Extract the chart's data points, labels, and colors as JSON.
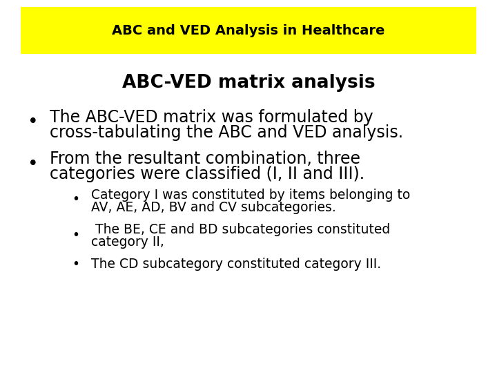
{
  "title_banner_text": "ABC and VED Analysis in Healthcare",
  "title_banner_bg": "#ffff00",
  "title_banner_text_color": "#000000",
  "subtitle": "ABC-VED matrix analysis",
  "bg_color": "#ffffff",
  "bullet1_line1": "The ABC-VED matrix was formulated by",
  "bullet1_line2": "cross-tabulating the ABC and VED analysis.",
  "bullet2_line1": "From the resultant combination, three",
  "bullet2_line2": "categories were classified (I, II and III).",
  "sub_bullet1_line1": "Category I was constituted by items belonging to",
  "sub_bullet1_line2": "AV, AE, AD, BV and CV subcategories.",
  "sub_bullet2_line1": " The BE, CE and BD subcategories constituted",
  "sub_bullet2_line2": "category II,",
  "sub_bullet3": "The CD subcategory constituted category III.",
  "main_font_size": 17,
  "sub_font_size": 13.5,
  "title_font_size": 14,
  "subtitle_font_size": 19
}
